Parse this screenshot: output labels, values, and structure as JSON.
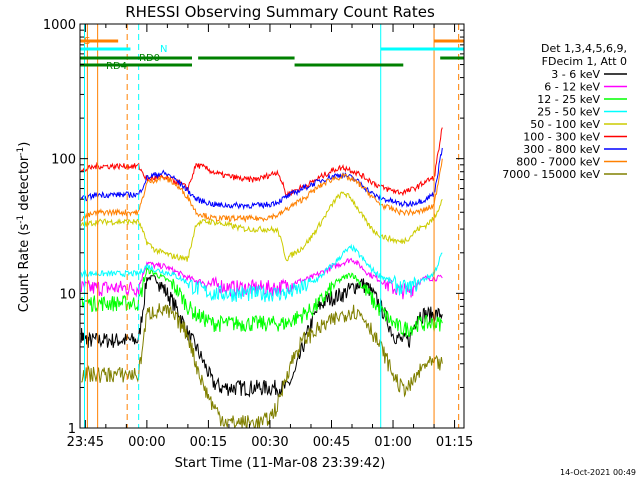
{
  "chart_data": {
    "type": "line",
    "title": "RHESSI Observing Summary Count Rates",
    "xlabel": "Start Time (11-Mar-08 23:39:42)",
    "ylabel_main": "Count Rate (s",
    "ylabel_sup1": "-1",
    "ylabel_mid": " detector",
    "ylabel_sup2": "-1",
    "ylabel_end": ")",
    "y_scale": "log",
    "ylim": [
      1,
      1000
    ],
    "xlim_minutes": [
      -16.3,
      77.3
    ],
    "x_tick_labels": [
      "23:45",
      "00:00",
      "00:15",
      "00:30",
      "00:45",
      "01:00",
      "01:15"
    ],
    "x_tick_minutes": [
      -15,
      0,
      15,
      30,
      45,
      60,
      75
    ],
    "y_tick_labels": [
      "1",
      "10",
      "100",
      "1000"
    ],
    "y_tick_values": [
      1,
      10,
      100,
      1000
    ],
    "legend_position": "right",
    "legend_header": [
      "Det 1,3,4,5,6,9,",
      "FDecim 1, Att 0"
    ],
    "footer_date": "14-Oct-2021 00:49",
    "flag_labels": {
      "S": "S",
      "N": "N",
      "RD0": "RD0",
      "RD4": "RD4"
    },
    "series": [
      {
        "name": "3 - 6 keV",
        "color": "#000000",
        "x": [
          -16,
          -15,
          -14,
          -12,
          -10,
          -8,
          -6,
          -4,
          -2,
          0,
          2,
          4,
          6,
          8,
          10,
          12,
          14,
          16,
          18,
          20,
          22,
          24,
          26,
          28,
          30,
          32,
          34,
          36,
          38,
          40,
          42,
          44,
          46,
          48,
          50,
          52,
          54,
          56,
          58,
          60,
          62,
          64,
          66,
          68,
          70,
          72
        ],
        "y": [
          5,
          4.5,
          4.5,
          4.5,
          4.5,
          4.5,
          4.5,
          4.5,
          4.5,
          13,
          13,
          11,
          9,
          7,
          5,
          4,
          3,
          2.2,
          2,
          2,
          2,
          2,
          2,
          2,
          2,
          2,
          2,
          2.5,
          4,
          6,
          8,
          9,
          9.5,
          10,
          11,
          12,
          11,
          9,
          7,
          5,
          4.5,
          4.5,
          7,
          7,
          7,
          7
        ]
      },
      {
        "name": "6 - 12 keV",
        "color": "#ff00ff",
        "x": [
          -16,
          -14,
          -12,
          -10,
          -8,
          -6,
          -4,
          -2,
          0,
          2,
          4,
          6,
          8,
          10,
          12,
          14,
          16,
          18,
          20,
          22,
          24,
          26,
          28,
          30,
          32,
          34,
          36,
          38,
          40,
          42,
          44,
          46,
          48,
          50,
          52,
          54,
          56,
          58,
          60,
          62,
          64,
          66,
          68,
          70,
          72
        ],
        "y": [
          11,
          11,
          11,
          11,
          11,
          11,
          11,
          11,
          17,
          16,
          16,
          15,
          14,
          13,
          12.5,
          12,
          11.5,
          11.5,
          11,
          11,
          11,
          11,
          11,
          11,
          11,
          11.5,
          12,
          12.5,
          13,
          14,
          15,
          16,
          17,
          18,
          16,
          14,
          13,
          12,
          11,
          10.5,
          10.5,
          12,
          13,
          13,
          13
        ]
      },
      {
        "name": "12 - 25 keV",
        "color": "#00ff00",
        "x": [
          -16,
          -14,
          -12,
          -10,
          -8,
          -6,
          -4,
          -2,
          0,
          2,
          4,
          6,
          8,
          10,
          12,
          14,
          16,
          18,
          20,
          22,
          24,
          26,
          28,
          30,
          32,
          34,
          36,
          38,
          40,
          42,
          44,
          46,
          48,
          50,
          52,
          54,
          56,
          58,
          60,
          62,
          64,
          66,
          68,
          70,
          72
        ],
        "y": [
          9,
          8.5,
          8.5,
          8.5,
          8.5,
          8.5,
          8.5,
          8.5,
          15,
          14,
          13,
          12,
          10,
          8,
          7,
          6.5,
          6,
          6,
          6,
          6,
          6,
          6,
          6,
          6,
          6,
          6,
          6.5,
          7,
          7.5,
          8.5,
          10,
          12,
          13,
          14,
          12,
          10,
          8,
          7,
          6,
          5.5,
          5.5,
          6,
          6,
          6,
          6
        ]
      },
      {
        "name": "25 - 50 keV",
        "color": "#00ffff",
        "x": [
          -16,
          -14,
          -12,
          -10,
          -8,
          -6,
          -4,
          -2,
          0,
          2,
          4,
          6,
          8,
          10,
          12,
          14,
          16,
          18,
          20,
          22,
          24,
          26,
          28,
          30,
          32,
          34,
          36,
          38,
          40,
          42,
          44,
          46,
          48,
          50,
          52,
          54,
          56,
          58,
          60,
          62,
          64,
          66,
          68,
          70,
          72
        ],
        "y": [
          14,
          14,
          14,
          14,
          14,
          14,
          14,
          14,
          16,
          15,
          14.5,
          14,
          13,
          12,
          11,
          10.5,
          10,
          10,
          10,
          10,
          10,
          10,
          10,
          10,
          10,
          10,
          10.5,
          11,
          12,
          13,
          15,
          17,
          20,
          22,
          19,
          16,
          14,
          13,
          12,
          11,
          11,
          12,
          13,
          14,
          20
        ]
      },
      {
        "name": "50 - 100 keV",
        "color": "#cccc00",
        "x": [
          -16,
          -14,
          -12,
          -10,
          -8,
          -6,
          -4,
          -2,
          0,
          2,
          4,
          6,
          8,
          10,
          12,
          14,
          16,
          18,
          20,
          22,
          24,
          26,
          28,
          30,
          32,
          34,
          36,
          38,
          40,
          42,
          44,
          46,
          48,
          50,
          52,
          54,
          56,
          58,
          60,
          62,
          64,
          66,
          68,
          70,
          72
        ],
        "y": [
          32,
          33,
          34,
          34,
          34,
          34,
          34,
          34,
          24,
          21,
          20,
          19,
          18.5,
          18,
          33,
          34,
          34,
          33,
          32,
          31,
          30,
          30,
          30,
          30,
          29,
          18,
          20,
          22,
          26,
          32,
          40,
          50,
          56,
          50,
          40,
          32,
          28,
          26,
          25,
          24,
          26,
          30,
          32,
          36,
          50
        ]
      },
      {
        "name": "100 - 300 keV",
        "color": "#ff0000",
        "x": [
          -16,
          -14,
          -12,
          -10,
          -8,
          -6,
          -4,
          -2,
          0,
          2,
          4,
          6,
          8,
          10,
          12,
          14,
          16,
          18,
          20,
          22,
          24,
          26,
          28,
          30,
          32,
          34,
          36,
          38,
          40,
          42,
          44,
          46,
          48,
          50,
          52,
          54,
          56,
          58,
          60,
          62,
          64,
          66,
          68,
          70,
          72
        ],
        "y": [
          80,
          85,
          88,
          88,
          88,
          88,
          88,
          88,
          70,
          72,
          72,
          70,
          66,
          60,
          90,
          86,
          80,
          76,
          74,
          72,
          70,
          70,
          72,
          76,
          80,
          54,
          58,
          62,
          66,
          72,
          78,
          84,
          86,
          82,
          76,
          70,
          64,
          60,
          58,
          56,
          58,
          62,
          68,
          72,
          170
        ]
      },
      {
        "name": "300 - 800 keV",
        "color": "#0000ff",
        "x": [
          -16,
          -14,
          -12,
          -10,
          -8,
          -6,
          -4,
          -2,
          0,
          2,
          4,
          6,
          8,
          10,
          12,
          14,
          16,
          18,
          20,
          22,
          24,
          26,
          28,
          30,
          32,
          34,
          36,
          38,
          40,
          42,
          44,
          46,
          48,
          50,
          52,
          54,
          56,
          58,
          60,
          62,
          64,
          66,
          68,
          70,
          72
        ],
        "y": [
          50,
          52,
          54,
          54,
          54,
          54,
          54,
          54,
          72,
          76,
          78,
          74,
          66,
          58,
          50,
          48,
          46,
          45,
          45,
          45,
          45,
          45,
          45,
          46,
          48,
          52,
          56,
          60,
          64,
          68,
          72,
          75,
          76,
          72,
          66,
          58,
          52,
          50,
          48,
          46,
          46,
          48,
          50,
          55,
          120
        ]
      },
      {
        "name": "800 - 7000 keV",
        "color": "#ff8000",
        "x": [
          -16,
          -14,
          -12,
          -10,
          -8,
          -6,
          -4,
          -2,
          0,
          2,
          4,
          6,
          8,
          10,
          12,
          14,
          16,
          18,
          20,
          22,
          24,
          26,
          28,
          30,
          32,
          34,
          36,
          38,
          40,
          42,
          44,
          46,
          48,
          50,
          52,
          54,
          56,
          58,
          60,
          62,
          64,
          66,
          68,
          70,
          72
        ],
        "y": [
          36,
          38,
          40,
          40,
          40,
          40,
          40,
          40,
          66,
          70,
          72,
          68,
          60,
          52,
          40,
          38,
          36,
          36,
          36,
          36,
          36,
          36,
          36,
          37,
          38,
          42,
          46,
          50,
          56,
          62,
          68,
          72,
          74,
          70,
          64,
          56,
          48,
          44,
          42,
          40,
          40,
          40,
          42,
          45,
          100
        ]
      },
      {
        "name": "7000 - 15000 keV",
        "color": "#808000",
        "x": [
          -16,
          -14,
          -12,
          -10,
          -8,
          -6,
          -4,
          -2,
          0,
          2,
          4,
          6,
          8,
          10,
          12,
          14,
          16,
          18,
          20,
          22,
          24,
          26,
          28,
          30,
          32,
          34,
          36,
          38,
          40,
          42,
          44,
          46,
          48,
          50,
          52,
          54,
          56,
          58,
          60,
          62,
          64,
          66,
          68,
          70,
          72
        ],
        "y": [
          2.5,
          2.5,
          2.5,
          2.5,
          2.5,
          2.5,
          2.5,
          2.5,
          7,
          7.5,
          7.5,
          7,
          6,
          5,
          3,
          2,
          1.5,
          1.2,
          1.1,
          1.1,
          1.1,
          1.1,
          1.1,
          1.2,
          1.5,
          2.5,
          3.5,
          4.5,
          5,
          5.5,
          6,
          6.5,
          7,
          7.5,
          7,
          6,
          4.5,
          3.5,
          2.5,
          2,
          2,
          2.5,
          3,
          3,
          3
        ]
      }
    ],
    "vertical_lines": [
      {
        "minute": -15.2,
        "color": "#00ffff",
        "style": "solid"
      },
      {
        "minute": -14.5,
        "color": "#ff8000",
        "style": "solid"
      },
      {
        "minute": -12.0,
        "color": "#ff8000",
        "style": "solid"
      },
      {
        "minute": -4.8,
        "color": "#ff8000",
        "style": "dashed"
      },
      {
        "minute": -2.0,
        "color": "#00ffff",
        "style": "dashed"
      },
      {
        "minute": 57.0,
        "color": "#00ffff",
        "style": "solid"
      },
      {
        "minute": 70.0,
        "color": "#ff8000",
        "style": "solid"
      },
      {
        "minute": 76.0,
        "color": "#ff8000",
        "style": "dashed"
      }
    ],
    "flag_bars": [
      {
        "label": "S",
        "color": "#ff8000",
        "level": 0,
        "segments": [
          [
            -16.3,
            -7
          ],
          [
            70,
            77.3
          ]
        ]
      },
      {
        "label": "N",
        "color": "#00ffff",
        "level": 1,
        "segments": [
          [
            -16.3,
            -4
          ],
          [
            57,
            77.3
          ]
        ]
      },
      {
        "label": "RD0",
        "color": "#008000",
        "level": 2,
        "segments": [
          [
            -16.3,
            11
          ],
          [
            12.5,
            36
          ],
          [
            71.5,
            77.3
          ]
        ]
      },
      {
        "label": "RD4",
        "color": "#008000",
        "level": 3,
        "segments": [
          [
            -16.3,
            11
          ],
          [
            36,
            62.5
          ]
        ]
      }
    ]
  }
}
